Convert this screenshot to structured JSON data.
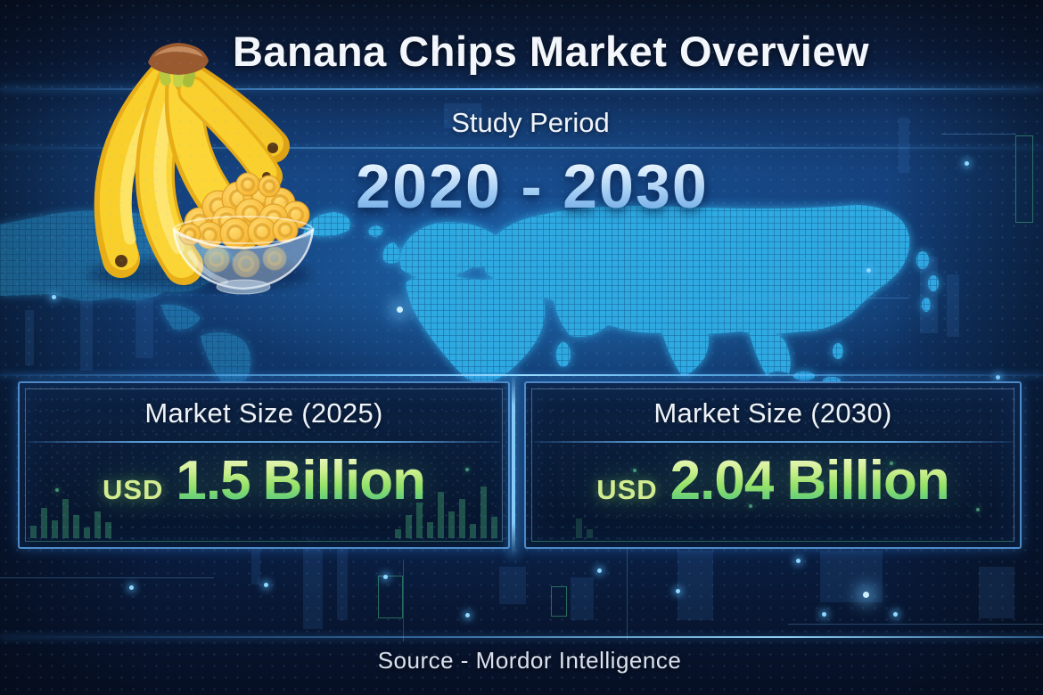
{
  "header": {
    "title": "Banana Chips Market Overview"
  },
  "study_period": {
    "label": "Study Period",
    "value": "2020 - 2030"
  },
  "cards": [
    {
      "label": "Market Size (2025)",
      "currency": "USD",
      "amount": "1.5",
      "unit": "Billion"
    },
    {
      "label": "Market Size (2030)",
      "currency": "USD",
      "amount": "2.04",
      "unit": "Billion"
    }
  ],
  "footer": {
    "source_text": "Source - Mordor Intelligence"
  },
  "illustration": {
    "icon": "bananas-and-banana-chips-bowl"
  },
  "colors": {
    "background_navy": "#0b1c3c",
    "accent_blue": "#4fb0ff",
    "map_cyan": "#2fa9e2",
    "period_gradient_top": "#f2f9ff",
    "period_gradient_bottom": "#5e9fe0",
    "value_gradient_top": "#f0f8c8",
    "value_gradient_bottom": "#49b87a",
    "currency_green": "#d2ec90"
  },
  "chart_data": {
    "type": "table",
    "title": "Banana Chips Market Overview",
    "study_period": {
      "start": 2020,
      "end": 2030
    },
    "series": [
      {
        "name": "Market Size (2025)",
        "year": 2025,
        "value": 1.5,
        "unit": "USD Billion"
      },
      {
        "name": "Market Size (2030)",
        "year": 2030,
        "value": 2.04,
        "unit": "USD Billion"
      }
    ],
    "source": "Mordor Intelligence"
  }
}
